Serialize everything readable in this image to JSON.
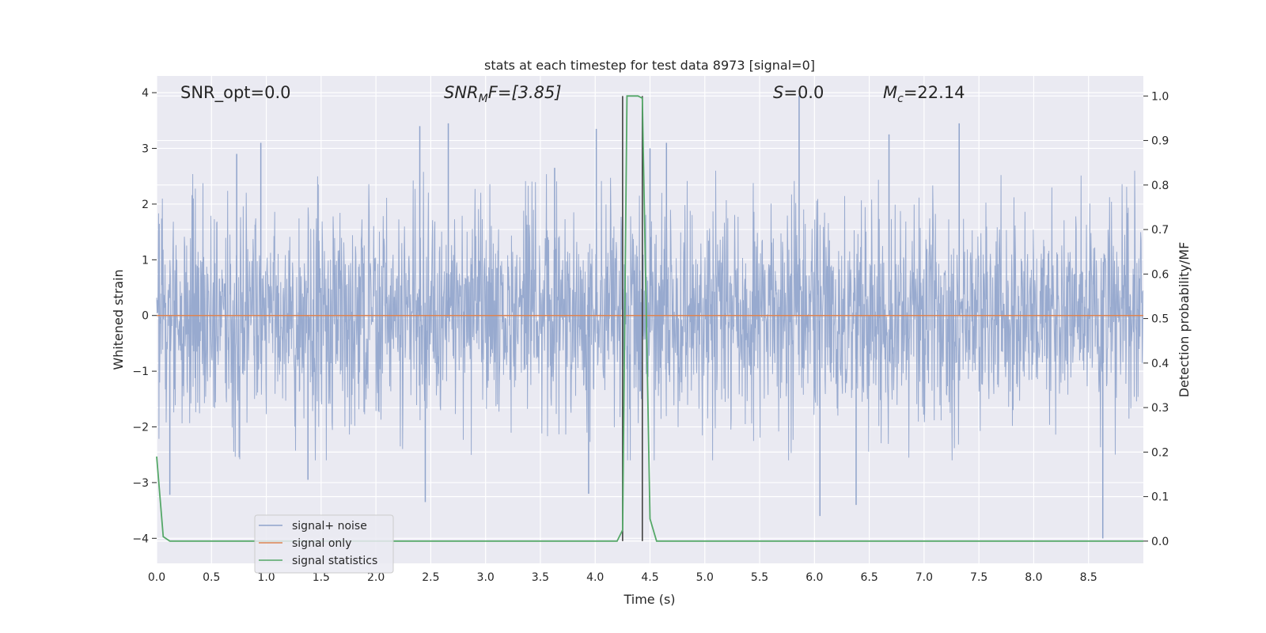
{
  "chart_data": {
    "type": "line",
    "title": "stats at each timestep for test data 8973 [signal=0]",
    "xlabel": "Time (s)",
    "ylabel": "Whitened strain",
    "ylabel_right": "Detection probability/MF",
    "xlim": [
      0.0,
      9.0
    ],
    "ylim": [
      -4.45,
      4.3
    ],
    "ylim_right": [
      -0.05,
      1.045
    ],
    "x_ticks": [
      "0.0",
      "0.5",
      "1.0",
      "1.5",
      "2.0",
      "2.5",
      "3.0",
      "3.5",
      "4.0",
      "4.5",
      "5.0",
      "5.5",
      "6.0",
      "6.5",
      "7.0",
      "7.5",
      "8.0",
      "8.5"
    ],
    "y_ticks": [
      "4",
      "3",
      "2",
      "1",
      "0",
      "−1",
      "−2",
      "−3",
      "−4"
    ],
    "y_ticks_right": [
      "1.0",
      "0.9",
      "0.8",
      "0.7",
      "0.6",
      "0.5",
      "0.4",
      "0.3",
      "0.2",
      "0.1",
      "0.0"
    ],
    "grid": true,
    "legend_position": "lower-left",
    "annotations": {
      "snr_opt": "SNR_opt=0.0",
      "snr_mf_main": "SNR",
      "snr_mf_sub": "M",
      "snr_mf_rest": "F=[3.85]",
      "s_main": "S",
      "s_rest": "=0.0",
      "mc_main": "M",
      "mc_sub": "c",
      "mc_rest": "=22.14"
    },
    "vlines": [
      4.25,
      4.43
    ],
    "series": [
      {
        "name": "signal+ noise",
        "color": "#8fa3cb",
        "axis": "left",
        "notes": "whitened strain noise, duration 9 s, roughly Gaussian envelope +-2.5 with spikes to +-4",
        "spikes": [
          {
            "x": 0.12,
            "y": -3.22
          },
          {
            "x": 0.73,
            "y": 2.9
          },
          {
            "x": 0.95,
            "y": 3.1
          },
          {
            "x": 1.38,
            "y": -2.95
          },
          {
            "x": 2.4,
            "y": 3.4
          },
          {
            "x": 2.45,
            "y": -3.35
          },
          {
            "x": 2.66,
            "y": 3.45
          },
          {
            "x": 3.63,
            "y": 2.65
          },
          {
            "x": 3.94,
            "y": -3.2
          },
          {
            "x": 4.01,
            "y": 3.35
          },
          {
            "x": 4.5,
            "y": 3.0
          },
          {
            "x": 4.65,
            "y": 3.1
          },
          {
            "x": 5.86,
            "y": 3.95
          },
          {
            "x": 6.05,
            "y": -3.6
          },
          {
            "x": 6.38,
            "y": -3.4
          },
          {
            "x": 6.68,
            "y": 3.25
          },
          {
            "x": 7.32,
            "y": 3.45
          },
          {
            "x": 8.63,
            "y": -4.0
          }
        ]
      },
      {
        "name": "signal only",
        "color": "#dd8452",
        "axis": "left",
        "x": [
          0.0,
          9.0
        ],
        "y": [
          0.0,
          0.0
        ]
      },
      {
        "name": "signal statistics",
        "color": "#55a868",
        "axis": "right",
        "x": [
          0.0,
          0.06,
          0.12,
          4.0,
          4.2,
          4.25,
          4.29,
          4.34,
          4.39,
          4.43,
          4.5,
          4.56,
          9.0
        ],
        "y": [
          0.19,
          0.01,
          0.0,
          0.0,
          0.0,
          0.025,
          1.0,
          1.0,
          1.0,
          0.995,
          0.05,
          0.0,
          0.0
        ]
      }
    ]
  }
}
